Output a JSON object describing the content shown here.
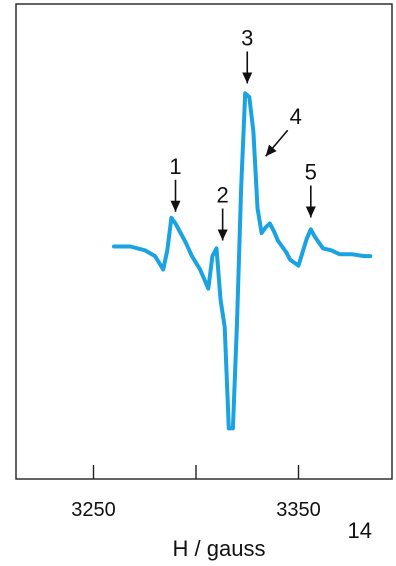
{
  "chart_data": {
    "type": "line",
    "xlabel": "H / gauss",
    "xlim": [
      3200,
      3400
    ],
    "ylim": [
      -1.0,
      1.0
    ],
    "x_ticks": [
      3250,
      3300,
      3350,
      3400
    ],
    "x_tick_labels": [
      "3250",
      "",
      "3350",
      ""
    ],
    "line_color": "#1aa3e0",
    "series": [
      {
        "x": [
          3260,
          3268,
          3275,
          3280,
          3284,
          3286,
          3288,
          3290,
          3295,
          3298,
          3302,
          3306,
          3308,
          3310,
          3312,
          3314,
          3316,
          3318,
          3320,
          3322,
          3324,
          3326,
          3328,
          3330,
          3332,
          3334,
          3336,
          3338,
          3340,
          3342,
          3344,
          3346,
          3350,
          3354,
          3356,
          3358,
          3360,
          3362,
          3366,
          3370,
          3376,
          3382,
          3385
        ],
        "y": [
          0.0,
          0.0,
          -0.02,
          -0.05,
          -0.12,
          -0.02,
          0.15,
          0.12,
          0.02,
          -0.05,
          -0.12,
          -0.22,
          -0.05,
          -0.01,
          -0.28,
          -0.42,
          -0.95,
          -0.95,
          -0.4,
          0.3,
          0.8,
          0.78,
          0.6,
          0.2,
          0.07,
          0.1,
          0.12,
          0.08,
          0.03,
          0.0,
          -0.03,
          -0.07,
          -0.1,
          0.04,
          0.09,
          0.05,
          0.02,
          -0.01,
          -0.02,
          -0.04,
          -0.04,
          -0.05,
          -0.05
        ]
      }
    ],
    "annotations": [
      {
        "label": "1",
        "x": 3290,
        "y": 0.15
      },
      {
        "label": "2",
        "x": 3313,
        "y": 0.0
      },
      {
        "label": "3",
        "x": 3325,
        "y": 0.82
      },
      {
        "label": "4",
        "x": 3334,
        "y": 0.44
      },
      {
        "label": "5",
        "x": 3356,
        "y": 0.12
      }
    ]
  },
  "slide_number": "14"
}
